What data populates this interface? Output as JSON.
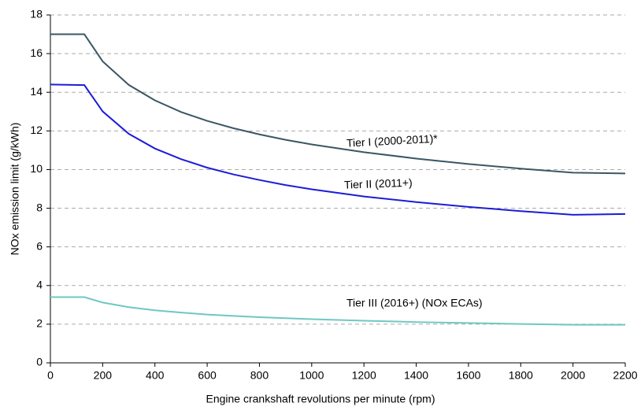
{
  "chart_data": {
    "type": "line",
    "x_label": "Engine crankshaft revolutions per minute (rpm)",
    "y_label": "NOx emission limit (g/kWh)",
    "x": [
      0,
      130,
      200,
      300,
      400,
      500,
      600,
      700,
      800,
      900,
      1000,
      1200,
      1400,
      1600,
      1800,
      2000,
      2200
    ],
    "series": [
      {
        "name": "Tier I (2000-2011)*",
        "color": "#3b5763",
        "values": [
          17.0,
          17.0,
          15.6,
          14.38,
          13.58,
          12.98,
          12.52,
          12.14,
          11.82,
          11.54,
          11.3,
          10.9,
          10.57,
          10.29,
          10.05,
          9.84,
          9.8
        ]
      },
      {
        "name": "Tier II (2011+)",
        "color": "#1c1cd6",
        "values": [
          14.4,
          14.37,
          13.01,
          11.85,
          11.09,
          10.54,
          10.1,
          9.75,
          9.46,
          9.2,
          8.98,
          8.61,
          8.32,
          8.07,
          7.85,
          7.66,
          7.7
        ]
      },
      {
        "name": "Tier III (2016+)  (NOx ECAs)",
        "color": "#6ec8c2",
        "values": [
          3.4,
          3.4,
          3.12,
          2.88,
          2.72,
          2.6,
          2.5,
          2.43,
          2.36,
          2.31,
          2.26,
          2.18,
          2.11,
          2.06,
          2.01,
          1.97,
          1.97
        ]
      }
    ],
    "xlim": [
      0,
      2200
    ],
    "xticks": [
      0,
      200,
      400,
      600,
      800,
      1000,
      1200,
      1400,
      1600,
      1800,
      2000,
      2200
    ],
    "ylim": [
      0,
      18
    ],
    "yticks": [
      0,
      2,
      4,
      6,
      8,
      10,
      12,
      14,
      16,
      18
    ],
    "grid": true
  }
}
